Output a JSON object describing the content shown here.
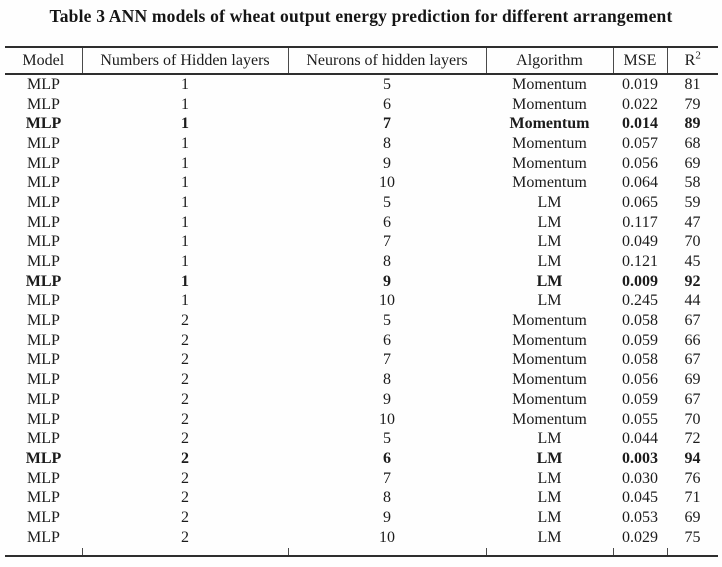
{
  "title": "Table 3 ANN models of wheat output energy prediction for different arrangement",
  "table": {
    "headers": [
      "Model",
      "Numbers of Hidden layers",
      "Neurons of hidden layers",
      "Algorithm",
      "MSE"
    ],
    "r2_header": {
      "base": "R",
      "sup": "2"
    },
    "bold_rows": [
      2,
      10,
      19
    ],
    "rows": [
      [
        "MLP",
        "1",
        "5",
        "Momentum",
        "0.019",
        "81"
      ],
      [
        "MLP",
        "1",
        "6",
        "Momentum",
        "0.022",
        "79"
      ],
      [
        "MLP",
        "1",
        "7",
        "Momentum",
        "0.014",
        "89"
      ],
      [
        "MLP",
        "1",
        "8",
        "Momentum",
        "0.057",
        "68"
      ],
      [
        "MLP",
        "1",
        "9",
        "Momentum",
        "0.056",
        "69"
      ],
      [
        "MLP",
        "1",
        "10",
        "Momentum",
        "0.064",
        "58"
      ],
      [
        "MLP",
        "1",
        "5",
        "LM",
        "0.065",
        "59"
      ],
      [
        "MLP",
        "1",
        "6",
        "LM",
        "0.117",
        "47"
      ],
      [
        "MLP",
        "1",
        "7",
        "LM",
        "0.049",
        "70"
      ],
      [
        "MLP",
        "1",
        "8",
        "LM",
        "0.121",
        "45"
      ],
      [
        "MLP",
        "1",
        "9",
        "LM",
        "0.009",
        "92"
      ],
      [
        "MLP",
        "1",
        "10",
        "LM",
        "0.245",
        "44"
      ],
      [
        "MLP",
        "2",
        "5",
        "Momentum",
        "0.058",
        "67"
      ],
      [
        "MLP",
        "2",
        "6",
        "Momentum",
        "0.059",
        "66"
      ],
      [
        "MLP",
        "2",
        "7",
        "Momentum",
        "0.058",
        "67"
      ],
      [
        "MLP",
        "2",
        "8",
        "Momentum",
        "0.056",
        "69"
      ],
      [
        "MLP",
        "2",
        "9",
        "Momentum",
        "0.059",
        "67"
      ],
      [
        "MLP",
        "2",
        "10",
        "Momentum",
        "0.055",
        "70"
      ],
      [
        "MLP",
        "2",
        "5",
        "LM",
        "0.044",
        "72"
      ],
      [
        "MLP",
        "2",
        "6",
        "LM",
        "0.003",
        "94"
      ],
      [
        "MLP",
        "2",
        "7",
        "LM",
        "0.030",
        "76"
      ],
      [
        "MLP",
        "2",
        "8",
        "LM",
        "0.045",
        "71"
      ],
      [
        "MLP",
        "2",
        "9",
        "LM",
        "0.053",
        "69"
      ],
      [
        "MLP",
        "2",
        "10",
        "LM",
        "0.029",
        "75"
      ]
    ]
  },
  "colors": {
    "text": "#1b1b1b",
    "rule": "#2e2e2e",
    "background": "#fefefe"
  }
}
